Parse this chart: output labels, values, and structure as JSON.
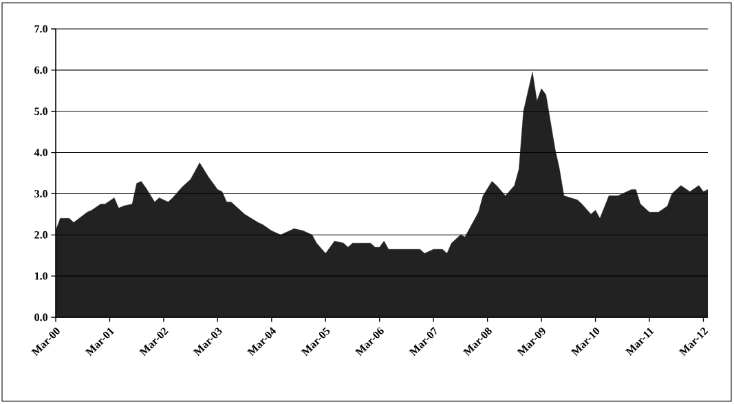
{
  "chart_data": {
    "type": "area",
    "color": "#222222",
    "grid": "y",
    "xlim": [
      "2000-03",
      "2012-04"
    ],
    "ylim": [
      0,
      7
    ],
    "yticks": [
      {
        "value": 0,
        "label": "0.0"
      },
      {
        "value": 1,
        "label": "1.0"
      },
      {
        "value": 2,
        "label": "2.0"
      },
      {
        "value": 3,
        "label": "3.0"
      },
      {
        "value": 4,
        "label": "4.0"
      },
      {
        "value": 5,
        "label": "5.0"
      },
      {
        "value": 6,
        "label": "6.0"
      },
      {
        "value": 7,
        "label": "7.0"
      }
    ],
    "xticks": [
      {
        "value": "2000-03",
        "label": "Mar-00"
      },
      {
        "value": "2001-03",
        "label": "Mar-01"
      },
      {
        "value": "2002-03",
        "label": "Mar-02"
      },
      {
        "value": "2003-03",
        "label": "Mar-03"
      },
      {
        "value": "2004-03",
        "label": "Mar-04"
      },
      {
        "value": "2005-03",
        "label": "Mar-05"
      },
      {
        "value": "2006-03",
        "label": "Mar-06"
      },
      {
        "value": "2007-03",
        "label": "Mar-07"
      },
      {
        "value": "2008-03",
        "label": "Mar-08"
      },
      {
        "value": "2009-03",
        "label": "Mar-09"
      },
      {
        "value": "2010-03",
        "label": "Mar-10"
      },
      {
        "value": "2011-03",
        "label": "Mar-11"
      },
      {
        "value": "2012-03",
        "label": "Mar-12"
      }
    ],
    "x": [
      "2000-03",
      "2000-04",
      "2000-06",
      "2000-07",
      "2000-10",
      "2000-11",
      "2001-01",
      "2001-02",
      "2001-04",
      "2001-05",
      "2001-06",
      "2001-08",
      "2001-09",
      "2001-10",
      "2001-11",
      "2002-01",
      "2002-02",
      "2002-04",
      "2002-05",
      "2002-07",
      "2002-09",
      "2002-11",
      "2003-01",
      "2003-03",
      "2003-04",
      "2003-05",
      "2003-06",
      "2003-09",
      "2003-12",
      "2004-01",
      "2004-03",
      "2004-05",
      "2004-08",
      "2004-10",
      "2004-12",
      "2005-01",
      "2005-03",
      "2005-05",
      "2005-07",
      "2005-08",
      "2005-09",
      "2006-01",
      "2006-02",
      "2006-03",
      "2006-04",
      "2006-05",
      "2006-08",
      "2006-12",
      "2007-01",
      "2007-03",
      "2007-05",
      "2007-06",
      "2007-07",
      "2007-09",
      "2007-10",
      "2008-01",
      "2008-02",
      "2008-04",
      "2008-05",
      "2008-07",
      "2008-09",
      "2008-10",
      "2008-11",
      "2009-01",
      "2009-02",
      "2009-03",
      "2009-04",
      "2009-06",
      "2009-07",
      "2009-08",
      "2009-11",
      "2009-12",
      "2010-02",
      "2010-03",
      "2010-04",
      "2010-06",
      "2010-08",
      "2010-11",
      "2010-12",
      "2011-01",
      "2011-03",
      "2011-05",
      "2011-07",
      "2011-08",
      "2011-10",
      "2011-12",
      "2012-02",
      "2012-03",
      "2012-04"
    ],
    "values": [
      2.1,
      2.4,
      2.4,
      2.3,
      2.55,
      2.6,
      2.75,
      2.75,
      2.9,
      2.65,
      2.7,
      2.75,
      3.25,
      3.3,
      3.15,
      2.8,
      2.9,
      2.8,
      2.9,
      3.15,
      3.35,
      3.75,
      3.4,
      3.1,
      3.05,
      2.8,
      2.8,
      2.5,
      2.3,
      2.25,
      2.1,
      2.0,
      2.15,
      2.1,
      2.0,
      1.8,
      1.55,
      1.85,
      1.8,
      1.7,
      1.8,
      1.8,
      1.7,
      1.7,
      1.85,
      1.65,
      1.65,
      1.65,
      1.55,
      1.65,
      1.65,
      1.55,
      1.8,
      2.0,
      1.95,
      2.55,
      2.95,
      3.3,
      3.2,
      2.95,
      3.2,
      3.6,
      5.0,
      5.95,
      5.25,
      5.55,
      5.4,
      4.1,
      3.6,
      2.95,
      2.85,
      2.75,
      2.5,
      2.6,
      2.4,
      2.95,
      2.95,
      3.1,
      3.1,
      2.75,
      2.55,
      2.55,
      2.7,
      3.0,
      3.2,
      3.05,
      3.2,
      3.05,
      3.1
    ]
  }
}
